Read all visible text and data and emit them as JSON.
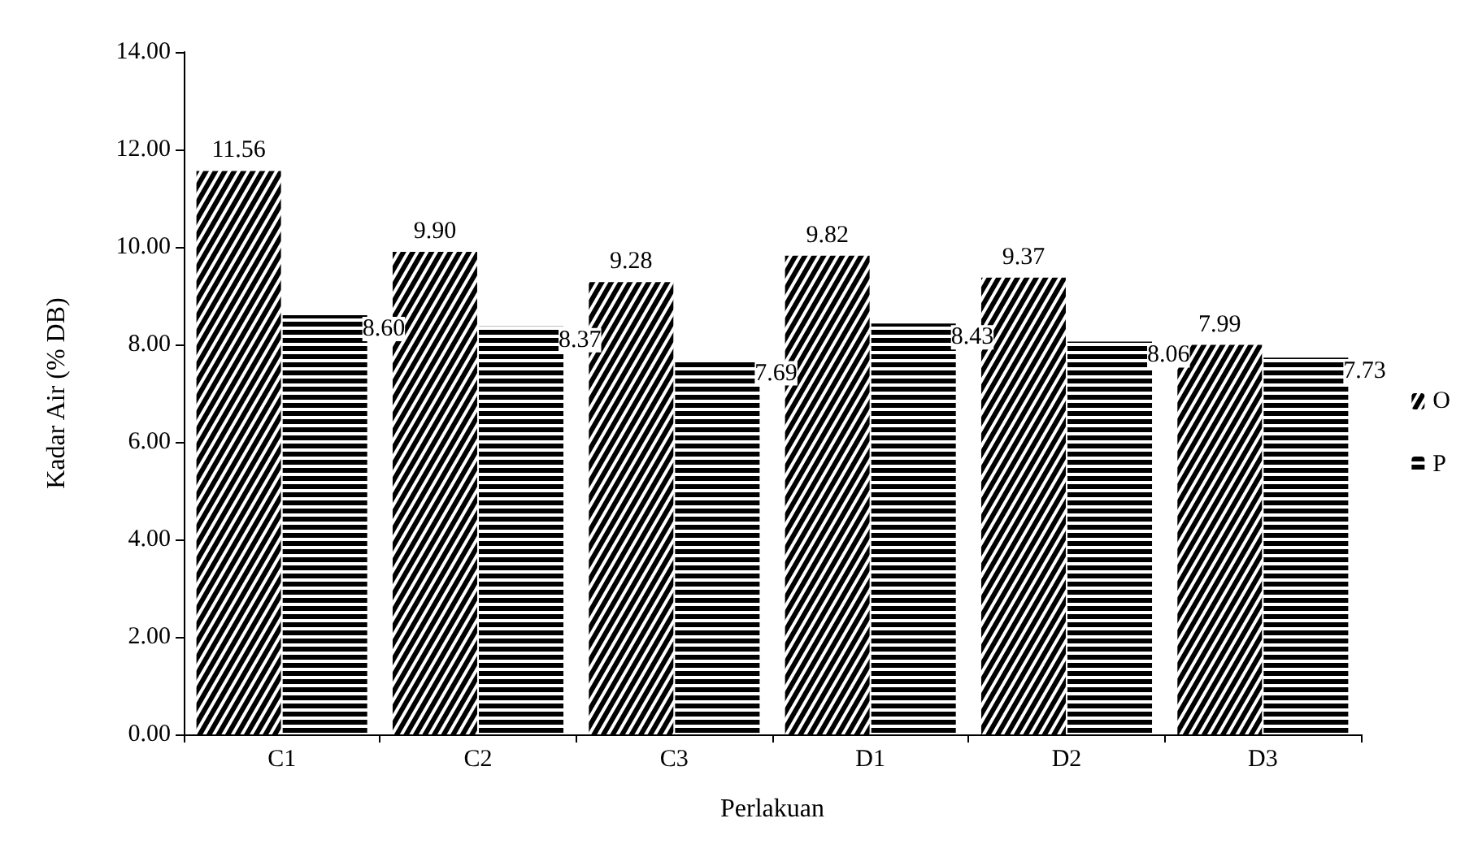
{
  "chart_data": {
    "type": "bar",
    "xlabel": "Perlakuan",
    "ylabel": "Kadar Air (% DB)",
    "categories": [
      "C1",
      "C2",
      "C3",
      "D1",
      "D2",
      "D3"
    ],
    "series": [
      {
        "name": "O",
        "color": "#000000",
        "values": [
          11.56,
          9.9,
          9.28,
          9.82,
          9.37,
          7.99
        ],
        "value_labels": [
          "11.56",
          "9.90",
          "9.28",
          "9.82",
          "9.37",
          "7.99"
        ]
      },
      {
        "name": "P",
        "color": "#000000",
        "values": [
          8.6,
          8.37,
          7.69,
          8.43,
          8.06,
          7.73
        ],
        "value_labels": [
          "8.60",
          "8.37",
          "7.69",
          "8.43",
          "8.06",
          "7.73"
        ]
      }
    ],
    "ylim": [
      0,
      14
    ],
    "yticks": [
      {
        "value": 0,
        "label": "0.00"
      },
      {
        "value": 2,
        "label": "2.00"
      },
      {
        "value": 4,
        "label": "4.00"
      },
      {
        "value": 6,
        "label": "6.00"
      },
      {
        "value": 8,
        "label": "8.00"
      },
      {
        "value": 10,
        "label": "10.00"
      },
      {
        "value": 12,
        "label": "12.00"
      },
      {
        "value": 14,
        "label": "14.00"
      }
    ],
    "grid": false,
    "legend": "right"
  }
}
